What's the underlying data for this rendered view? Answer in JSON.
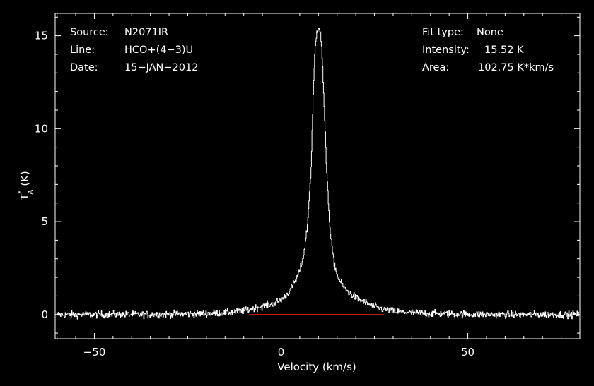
{
  "header_info": {
    "source_label": "Source:",
    "source_value": "N2071IR",
    "line_label": "Line:",
    "line_value": "HCO+(4−3)U",
    "date_label": "Date:",
    "date_value": "15−JAN−2012",
    "fit_label": "Fit type:",
    "fit_value": "None",
    "intensity_label": "Intensity:",
    "intensity_value": "15.52 K",
    "area_label": "Area:",
    "area_value": "102.75 K*km/s"
  },
  "colors": {
    "background": "#000000",
    "spectrum": "#ffffff",
    "baseline": "#ff2020",
    "axes": "#ffffff"
  },
  "chart_data": {
    "type": "line",
    "xlabel": "Velocity (km/s)",
    "ylabel_main": "T",
    "ylabel_sub": "A",
    "ylabel_sup": "*",
    "ylabel_unit": "(K)",
    "xlim": [
      -60.5,
      80
    ],
    "ylim": [
      -1.3,
      16.2
    ],
    "xticks": [
      -50,
      0,
      50
    ],
    "xtick_labels": [
      "−50",
      "0",
      "50"
    ],
    "yticks": [
      0,
      5,
      10,
      15
    ],
    "ytick_labels": [
      "0",
      "5",
      "10",
      "15"
    ],
    "grid": false,
    "baseline": {
      "x": [
        -8.5,
        27.5
      ],
      "y": [
        0,
        0
      ]
    },
    "series": [
      {
        "x": [
          -60,
          -50,
          -40,
          -30,
          -20,
          -15,
          -10,
          -8,
          -6,
          -4,
          -2,
          0,
          2,
          4,
          5,
          6,
          7,
          8,
          8.5,
          9,
          9.5,
          10,
          10.5,
          11,
          11.5,
          12,
          13,
          14,
          15,
          16,
          17,
          18,
          20,
          22,
          24,
          26,
          28,
          30,
          35,
          40,
          50,
          60,
          70,
          80
        ],
        "values": [
          0,
          0,
          0,
          0.02,
          0.05,
          0.1,
          0.2,
          0.3,
          0.4,
          0.5,
          0.6,
          0.8,
          1.2,
          1.9,
          2.4,
          3.2,
          4.8,
          8.0,
          11.5,
          14.2,
          15.2,
          15.52,
          15.2,
          13.6,
          11.0,
          8.4,
          4.6,
          2.9,
          2.1,
          1.7,
          1.4,
          1.2,
          0.9,
          0.7,
          0.5,
          0.35,
          0.25,
          0.18,
          0.1,
          0.05,
          0.02,
          0,
          0,
          0
        ]
      }
    ]
  }
}
